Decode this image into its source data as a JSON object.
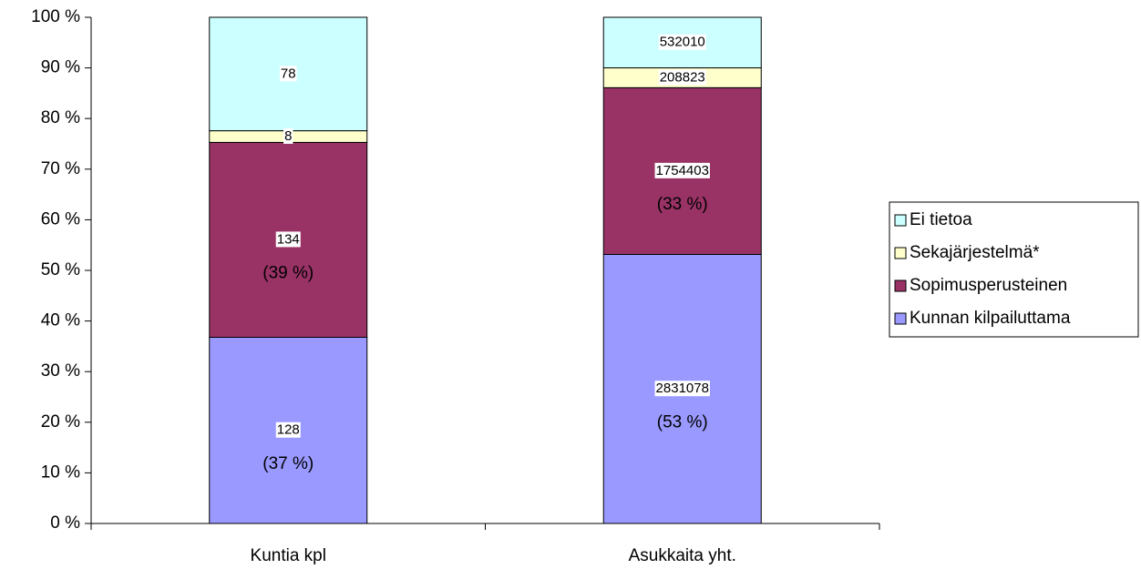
{
  "chart_data": {
    "type": "bar",
    "stacking": "percent",
    "categories": [
      "Kuntia kpl",
      "Asukkaita yht."
    ],
    "series": [
      {
        "name": "Kunnan kilpailuttama",
        "color": "#9999ff",
        "values": [
          128,
          2831078
        ],
        "share_labels": [
          "(37 %)",
          "(53 %)"
        ]
      },
      {
        "name": "Sopimusperusteinen",
        "color": "#993366",
        "values": [
          134,
          1754403
        ],
        "share_labels": [
          "(39 %)",
          "(33 %)"
        ]
      },
      {
        "name": "Sekajärjestelmä*",
        "color": "#ffffcc",
        "values": [
          8,
          208823
        ]
      },
      {
        "name": "Ei tietoa",
        "color": "#ccffff",
        "values": [
          78,
          532010
        ]
      }
    ],
    "ylim": [
      0,
      100
    ],
    "yticks": [
      {
        "value": 0,
        "label": "0 %"
      },
      {
        "value": 10,
        "label": "10 %"
      },
      {
        "value": 20,
        "label": "20 %"
      },
      {
        "value": 30,
        "label": "30 %"
      },
      {
        "value": 40,
        "label": "40 %"
      },
      {
        "value": 50,
        "label": "50 %"
      },
      {
        "value": 60,
        "label": "60 %"
      },
      {
        "value": 70,
        "label": "70 %"
      },
      {
        "value": 80,
        "label": "80 %"
      },
      {
        "value": 90,
        "label": "90 %"
      },
      {
        "value": 100,
        "label": "100 %"
      }
    ],
    "legend": "right"
  }
}
